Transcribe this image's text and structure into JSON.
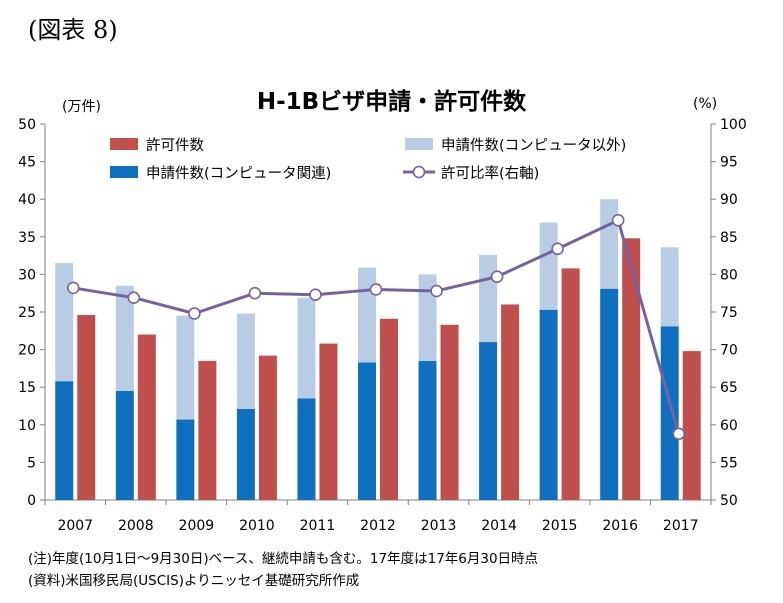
{
  "figure_label": "(図表 8)",
  "chart_data": {
    "type": "bar",
    "title": "H-1Bビザ申請・許可件数",
    "left_unit": "(万件)",
    "right_unit": "(%)",
    "categories": [
      "2007",
      "2008",
      "2009",
      "2010",
      "2011",
      "2012",
      "2013",
      "2014",
      "2015",
      "2016",
      "2017"
    ],
    "series": [
      {
        "name": "申請件数(コンピュータ関連)",
        "kind": "stacked-bar-bottom",
        "color": "#1070c0",
        "values": [
          15.8,
          14.5,
          10.7,
          12.1,
          13.5,
          18.3,
          18.5,
          21.0,
          25.3,
          28.1,
          23.1
        ]
      },
      {
        "name": "申請件数(コンピュータ以外)",
        "kind": "stacked-bar-top",
        "color": "#b8cce4",
        "values": [
          15.7,
          14.0,
          13.8,
          12.7,
          13.4,
          12.6,
          11.5,
          11.6,
          11.6,
          11.9,
          10.5
        ]
      },
      {
        "name": "許可件数",
        "kind": "bar",
        "color": "#c0504d",
        "values": [
          24.6,
          22.0,
          18.5,
          19.2,
          20.8,
          24.1,
          23.3,
          26.0,
          30.8,
          34.8,
          19.8
        ]
      },
      {
        "name": "許可比率(右軸)",
        "kind": "line",
        "axis": "right",
        "color": "#7563a0",
        "values": [
          78.2,
          76.9,
          74.8,
          77.5,
          77.3,
          78.0,
          77.8,
          79.7,
          83.4,
          87.2,
          58.8
        ]
      }
    ],
    "ylim": [
      0,
      50
    ],
    "y_ticks": [
      "0",
      "5",
      "10",
      "15",
      "20",
      "25",
      "30",
      "35",
      "40",
      "45",
      "50"
    ],
    "y2lim": [
      50,
      100
    ],
    "y2_ticks": [
      "50",
      "55",
      "60",
      "65",
      "70",
      "75",
      "80",
      "85",
      "90",
      "95",
      "100"
    ],
    "grid": false,
    "legend": {
      "placement": "top",
      "items": [
        {
          "label": "許可件数",
          "type": "bar",
          "color": "#c0504d"
        },
        {
          "label": "申請件数(コンピュータ以外)",
          "type": "bar",
          "color": "#b8cce4"
        },
        {
          "label": "申請件数(コンピュータ関連)",
          "type": "bar",
          "color": "#1070c0"
        },
        {
          "label": "許可比率(右軸)",
          "type": "line",
          "color": "#7563a0"
        }
      ]
    }
  },
  "notes": [
    "(注)年度(10月1日～9月30日)ベース、継続申請も含む。17年度は17年6月30日時点",
    "(資料)米国移民局(USCIS)よりニッセイ基礎研究所作成"
  ]
}
